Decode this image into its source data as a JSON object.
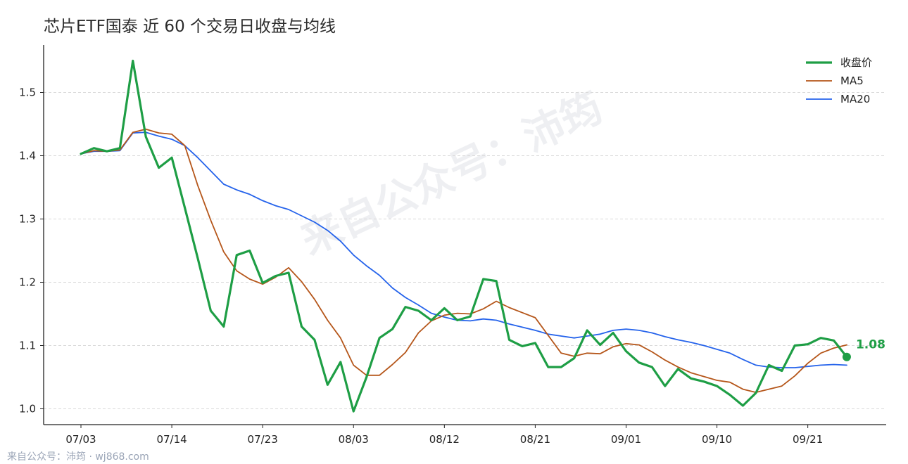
{
  "chart_data": {
    "type": "line",
    "title": "芯片ETF国泰 近 60 个交易日收盘与均线",
    "xlabel": "",
    "ylabel": "",
    "ylim": [
      0.975,
      1.575
    ],
    "y_ticks": [
      1.0,
      1.1,
      1.2,
      1.3,
      1.4,
      1.5
    ],
    "y_tick_labels": [
      "1.0",
      "1.1",
      "1.2",
      "1.3",
      "1.4",
      "1.5"
    ],
    "x_tick_labels": [
      "07/03",
      "07/14",
      "07/23",
      "08/03",
      "08/12",
      "08/21",
      "09/01",
      "09/10",
      "09/21"
    ],
    "x_tick_index": [
      0,
      7,
      14,
      21,
      28,
      35,
      42,
      49,
      56
    ],
    "n_points": 60,
    "grid": "horizontal dashed",
    "legend_position": "top-right",
    "series": [
      {
        "name": "收盘价",
        "color": "#1e9e45",
        "values": [
          1.403,
          1.412,
          1.407,
          1.412,
          1.55,
          1.43,
          1.381,
          1.397,
          1.318,
          1.238,
          1.155,
          1.13,
          1.243,
          1.25,
          1.199,
          1.21,
          1.215,
          1.13,
          1.109,
          1.038,
          1.074,
          0.996,
          1.05,
          1.112,
          1.126,
          1.161,
          1.155,
          1.14,
          1.159,
          1.14,
          1.146,
          1.205,
          1.202,
          1.109,
          1.099,
          1.104,
          1.066,
          1.066,
          1.08,
          1.124,
          1.101,
          1.12,
          1.091,
          1.073,
          1.066,
          1.036,
          1.063,
          1.048,
          1.043,
          1.036,
          1.022,
          1.005,
          1.025,
          1.069,
          1.06,
          1.1,
          1.102,
          1.112,
          1.108,
          1.082
        ]
      },
      {
        "name": "MA5",
        "color": "#b5561a",
        "values": [
          1.403,
          1.408,
          1.407,
          1.409,
          1.437,
          1.442,
          1.436,
          1.434,
          1.416,
          1.353,
          1.298,
          1.248,
          1.218,
          1.205,
          1.197,
          1.208,
          1.223,
          1.201,
          1.173,
          1.14,
          1.112,
          1.069,
          1.053,
          1.053,
          1.07,
          1.089,
          1.12,
          1.139,
          1.148,
          1.151,
          1.15,
          1.158,
          1.17,
          1.16,
          1.152,
          1.144,
          1.116,
          1.088,
          1.083,
          1.088,
          1.087,
          1.098,
          1.103,
          1.101,
          1.09,
          1.077,
          1.066,
          1.057,
          1.051,
          1.045,
          1.042,
          1.031,
          1.026,
          1.031,
          1.036,
          1.052,
          1.072,
          1.088,
          1.096,
          1.101
        ]
      },
      {
        "name": "MA20",
        "color": "#2563eb",
        "values": [
          1.403,
          1.407,
          1.407,
          1.408,
          1.436,
          1.437,
          1.431,
          1.426,
          1.416,
          1.397,
          1.376,
          1.355,
          1.346,
          1.339,
          1.329,
          1.321,
          1.315,
          1.305,
          1.295,
          1.282,
          1.265,
          1.243,
          1.226,
          1.211,
          1.191,
          1.176,
          1.164,
          1.151,
          1.145,
          1.14,
          1.139,
          1.142,
          1.14,
          1.134,
          1.129,
          1.124,
          1.118,
          1.115,
          1.112,
          1.115,
          1.118,
          1.124,
          1.126,
          1.124,
          1.12,
          1.114,
          1.109,
          1.105,
          1.1,
          1.094,
          1.088,
          1.078,
          1.069,
          1.066,
          1.065,
          1.065,
          1.067,
          1.069,
          1.07,
          1.069
        ]
      }
    ],
    "last_value_label": "1.08",
    "watermark": "来自公众号：沛筠"
  },
  "footer": {
    "text": "来自公众号：沛筠 · wj868.com"
  }
}
